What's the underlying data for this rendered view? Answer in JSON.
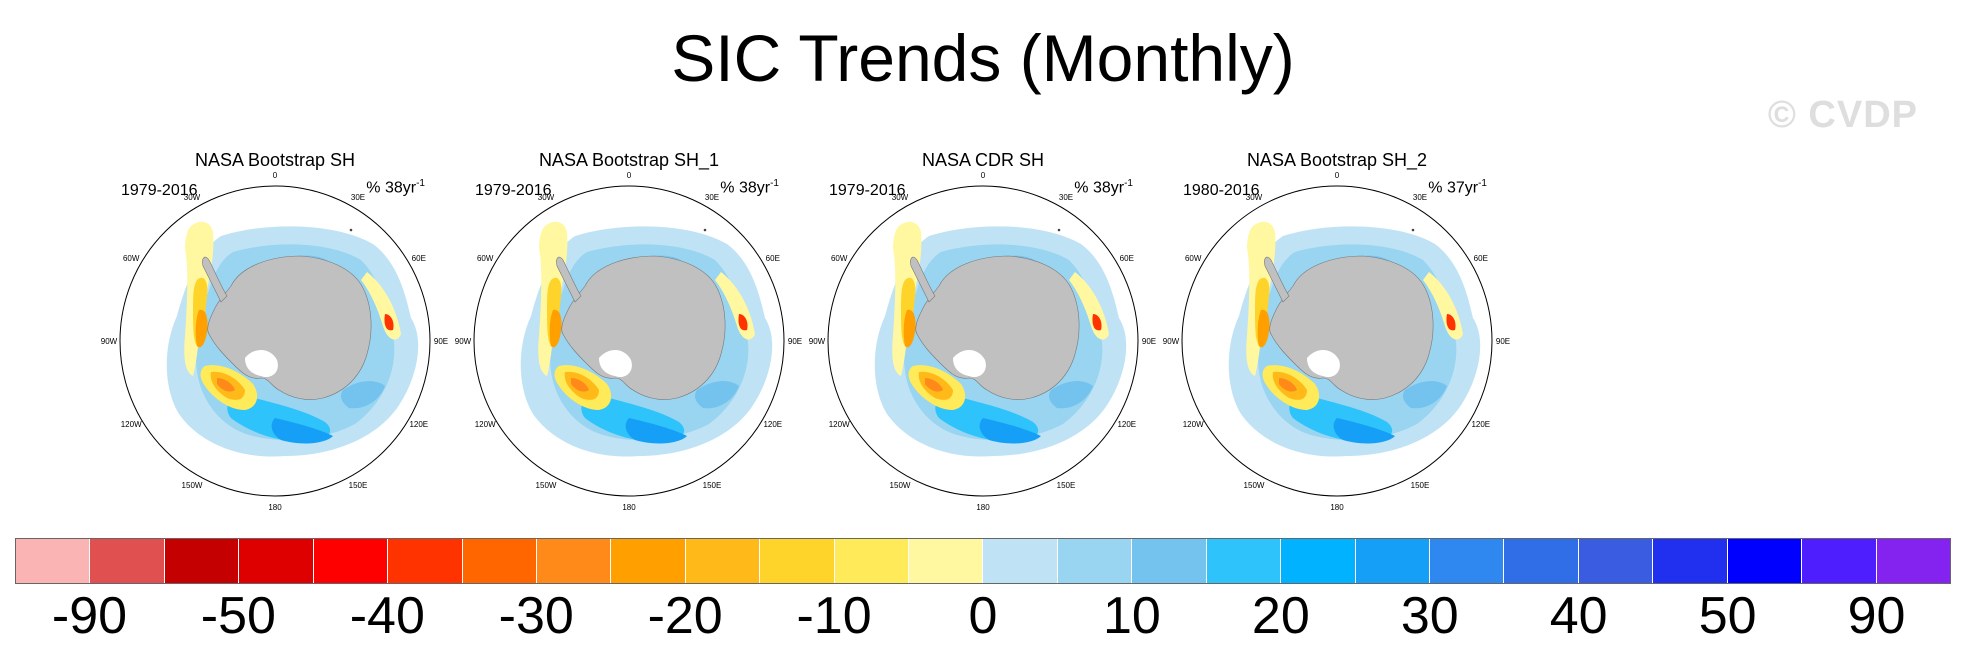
{
  "title": "SIC Trends (Monthly)",
  "watermark": "© CVDP",
  "units_prefix": "% ",
  "panels": [
    {
      "name": "NASA Bootstrap SH",
      "years": "1979-2016",
      "units": "38yr",
      "exponent": "-1",
      "variant": 0
    },
    {
      "name": "NASA Bootstrap SH_1",
      "years": "1979-2016",
      "units": "38yr",
      "exponent": "-1",
      "variant": 1
    },
    {
      "name": "NASA CDR SH",
      "years": "1979-2016",
      "units": "38yr",
      "exponent": "-1",
      "variant": 2
    },
    {
      "name": "NASA Bootstrap SH_2",
      "years": "1980-2016",
      "units": "37yr",
      "exponent": "-1",
      "variant": 3
    }
  ],
  "longitude_labels": [
    "0",
    "30E",
    "60E",
    "90E",
    "120E",
    "150E",
    "180",
    "150W",
    "120W",
    "90W",
    "60W",
    "30W"
  ],
  "colorbar": {
    "colors": [
      "#fbb4b4",
      "#e05050",
      "#c40000",
      "#de0000",
      "#ff0000",
      "#ff3300",
      "#ff6600",
      "#ff8a1a",
      "#ff9f00",
      "#ffba1a",
      "#ffd42a",
      "#ffeb5a",
      "#fff8a0",
      "#bfe3f5",
      "#99d4f0",
      "#74c2ee",
      "#2ec3fa",
      "#00b2ff",
      "#169ff7",
      "#2e88f0",
      "#2f6ee6",
      "#3a5ce0",
      "#2030ee",
      "#0000ff",
      "#4f1eff",
      "#8422f0"
    ],
    "labels": [
      "-90",
      "-50",
      "-40",
      "-30",
      "-20",
      "-10",
      "0",
      "10",
      "20",
      "30",
      "40",
      "50",
      "90"
    ]
  }
}
